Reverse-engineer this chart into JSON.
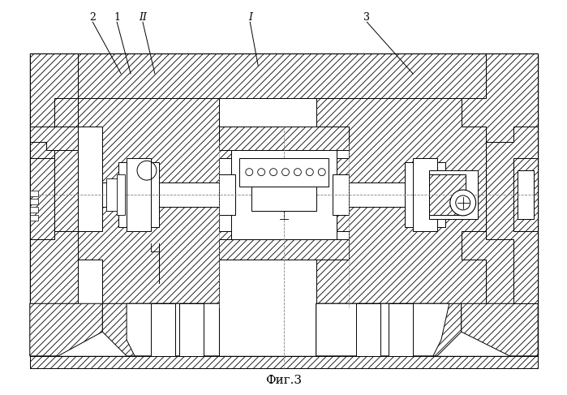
{
  "title": "Фиг.3",
  "labels": [
    [
      "2",
      113,
      20
    ],
    [
      "1",
      143,
      20
    ],
    [
      "II",
      175,
      20
    ],
    [
      "I",
      308,
      20
    ],
    [
      "3",
      453,
      20
    ]
  ],
  "bg_color": "#ffffff",
  "line_color": "#1a1a1a",
  "fig_width": 6.99,
  "fig_height": 4.87,
  "dpi": 100
}
